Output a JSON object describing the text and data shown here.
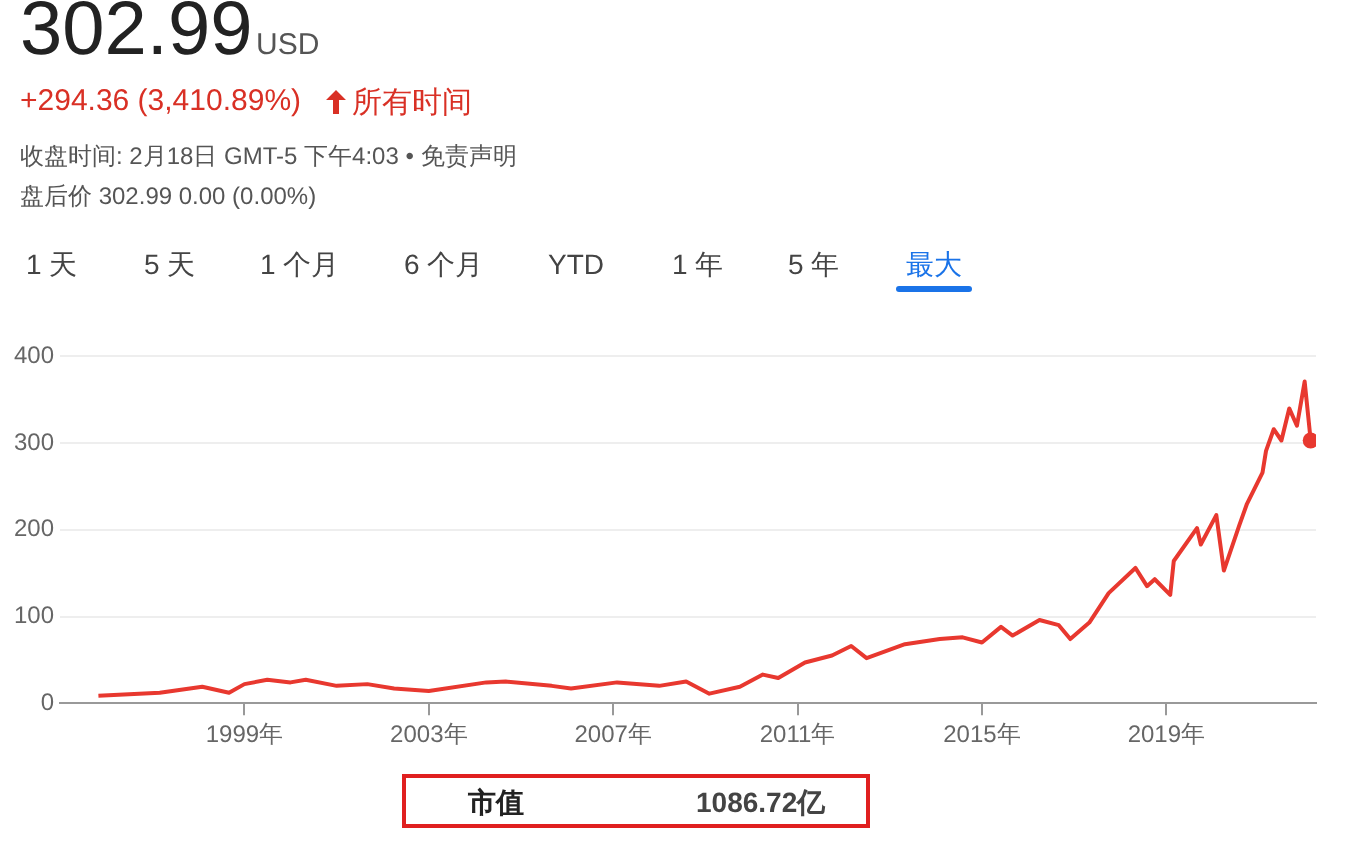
{
  "chart_data": {
    "type": "line",
    "title": "302.99",
    "subtitle": "USD",
    "annotations": [
      "+294.36 (3,410.89%)",
      "所有时间",
      "收盘时间: 2月18日 GMT-5 下午4:03 • 免责声明",
      "盘后价 302.99 0.00 (0.00%)",
      "1 天",
      "5 天",
      "1 个月",
      "6 个月",
      "YTD",
      "1 年",
      "5 年",
      "最大",
      "市值",
      "1086.72亿"
    ],
    "series": [
      {
        "color": "#e8382f",
        "x": [
          "1995-11",
          "1997-03",
          "1998-02",
          "1998-09",
          "1999-01",
          "1999-07",
          "2000-01",
          "2000-05",
          "2001-01",
          "2001-09",
          "2002-04",
          "2003-01",
          "2004-04",
          "2004-09",
          "2005-09",
          "2006-02",
          "2007-02",
          "2008-01",
          "2008-08",
          "2009-02",
          "2009-10",
          "2010-04",
          "2010-08",
          "2011-03",
          "2011-10",
          "2012-03",
          "2012-07",
          "2013-05",
          "2014-02",
          "2014-08",
          "2015-01",
          "2015-06",
          "2015-09",
          "2016-04",
          "2016-09",
          "2016-12",
          "2017-05",
          "2017-10",
          "2018-05",
          "2018-08",
          "2018-10",
          "2019-02",
          "2019-03",
          "2019-09",
          "2019-10",
          "2020-02",
          "2020-04",
          "2020-08",
          "2020-10",
          "2021-02",
          "2021-03",
          "2021-05",
          "2021-07",
          "2021-09",
          "2021-11",
          "2022-01",
          "2022-02-18"
        ],
        "values": [
          8.63,
          12,
          19,
          12,
          22,
          27,
          24,
          27,
          20,
          22,
          17,
          14,
          24,
          25,
          20,
          17,
          24,
          20,
          25,
          11,
          19,
          33,
          29,
          47,
          55,
          66,
          52,
          68,
          74,
          76,
          70,
          88,
          78,
          96,
          90,
          74,
          93,
          127,
          156,
          135,
          143,
          125,
          164,
          202,
          183,
          217,
          153,
          205,
          230,
          266,
          291,
          316,
          303,
          340,
          320,
          371,
          302.99
        ]
      }
    ],
    "xlim": [
      "1995-01",
      "2022-04"
    ],
    "xticks": [
      {
        "value": "1999-01",
        "label": "1999年"
      },
      {
        "value": "2003-01",
        "label": "2003年"
      },
      {
        "value": "2007-01",
        "label": "2007年"
      },
      {
        "value": "2011-01",
        "label": "2011年"
      },
      {
        "value": "2015-01",
        "label": "2015年"
      },
      {
        "value": "2019-01",
        "label": "2019年"
      }
    ],
    "ylim": [
      0,
      400
    ],
    "yticks": [
      0,
      100,
      200,
      300,
      400
    ],
    "grid": "y",
    "legend": false
  }
}
